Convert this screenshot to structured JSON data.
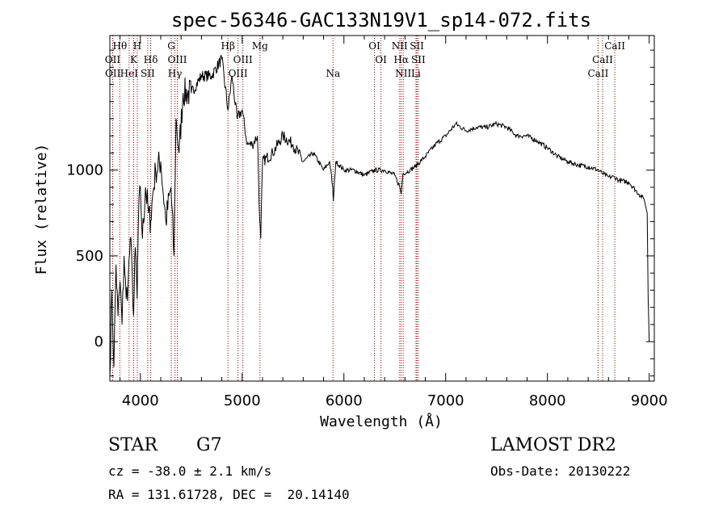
{
  "chart_data": {
    "type": "line",
    "title": "spec-56346-GAC133N19V1_sp14-072.fits",
    "xlabel": "Wavelength (Å)",
    "ylabel": "Flux (relative)",
    "xlim": [
      3700,
      9050
    ],
    "ylim": [
      -230,
      1785
    ],
    "xticks": [
      4000,
      5000,
      6000,
      7000,
      8000,
      9000
    ],
    "yticks": [
      0,
      500,
      1000
    ],
    "grid": false,
    "series": [
      {
        "values_x": [
          3700,
          3720,
          3740,
          3760,
          3780,
          3800,
          3820,
          3840,
          3860,
          3880,
          3900,
          3920,
          3933,
          3950,
          3968,
          3980,
          4000,
          4020,
          4050,
          4080,
          4101,
          4120,
          4150,
          4200,
          4250,
          4300,
          4330,
          4350,
          4380,
          4420,
          4500,
          4600,
          4700,
          4800,
          4861,
          4900,
          4950,
          5000,
          5050,
          5100,
          5150,
          5173,
          5183,
          5200,
          5300,
          5400,
          5500,
          5600,
          5700,
          5800,
          5860,
          5890,
          5896,
          5920,
          6000,
          6100,
          6200,
          6300,
          6400,
          6500,
          6550,
          6563,
          6580,
          6650,
          6700,
          6800,
          6900,
          7000,
          7100,
          7200,
          7300,
          7400,
          7500,
          7600,
          7700,
          7800,
          7900,
          8000,
          8100,
          8200,
          8300,
          8400,
          8500,
          8542,
          8600,
          8662,
          8700,
          8800,
          8900,
          8950,
          8980,
          8990,
          9000
        ],
        "values_y": [
          -200,
          300,
          -150,
          450,
          150,
          350,
          100,
          500,
          250,
          350,
          600,
          400,
          150,
          550,
          250,
          700,
          900,
          600,
          900,
          750,
          700,
          850,
          1000,
          1050,
          700,
          900,
          500,
          1300,
          1100,
          1450,
          1450,
          1550,
          1550,
          1650,
          1350,
          1550,
          1300,
          1350,
          1150,
          1150,
          1200,
          700,
          600,
          1050,
          1100,
          1200,
          1150,
          1050,
          1100,
          1000,
          1050,
          900,
          820,
          1050,
          1000,
          1000,
          970,
          1000,
          1000,
          970,
          900,
          860,
          980,
          1000,
          1020,
          1080,
          1150,
          1200,
          1270,
          1230,
          1250,
          1250,
          1270,
          1250,
          1200,
          1200,
          1170,
          1130,
          1080,
          1050,
          1030,
          1020,
          1000,
          980,
          960,
          960,
          940,
          930,
          860,
          830,
          750,
          250,
          0
        ]
      }
    ],
    "line_ids": [
      {
        "label": "Hθ",
        "x": 3798,
        "row": 0
      },
      {
        "label": "H",
        "x": 3970,
        "row": 0
      },
      {
        "label": "G",
        "x": 4304,
        "row": 0
      },
      {
        "label": "Hβ",
        "x": 4861,
        "row": 0
      },
      {
        "label": "Mg",
        "x": 5175,
        "row": 0
      },
      {
        "label": "OI",
        "x": 6300,
        "row": 0
      },
      {
        "label": "NII",
        "x": 6548,
        "row": 0
      },
      {
        "label": "SII",
        "x": 6717,
        "row": 0
      },
      {
        "label": "CaII",
        "x": 8662,
        "row": 0
      },
      {
        "label": "OII",
        "x": 3727,
        "row": 1
      },
      {
        "label": "K",
        "x": 3934,
        "row": 1
      },
      {
        "label": "Hδ",
        "x": 4102,
        "row": 1
      },
      {
        "label": "OIII",
        "x": 4363,
        "row": 1
      },
      {
        "label": "OIII",
        "x": 5007,
        "row": 1
      },
      {
        "label": "OI",
        "x": 6364,
        "row": 1
      },
      {
        "label": "Hα",
        "x": 6563,
        "row": 1
      },
      {
        "label": "SII",
        "x": 6731,
        "row": 1
      },
      {
        "label": "CaII",
        "x": 8542,
        "row": 1
      },
      {
        "label": "OII",
        "x": 3729,
        "row": 2
      },
      {
        "label": "HeI",
        "x": 3889,
        "row": 2
      },
      {
        "label": "SII",
        "x": 4072,
        "row": 2
      },
      {
        "label": "Hγ",
        "x": 4340,
        "row": 2
      },
      {
        "label": "OIII",
        "x": 4959,
        "row": 2
      },
      {
        "label": "Na",
        "x": 5893,
        "row": 2
      },
      {
        "label": "NII",
        "x": 6583,
        "row": 2
      },
      {
        "label": "Li",
        "x": 6708,
        "row": 2
      },
      {
        "label": "CaII",
        "x": 8498,
        "row": 2
      }
    ]
  },
  "footer": {
    "class_label": "STAR",
    "subclass": "G7",
    "survey": "LAMOST DR2",
    "cz": "cz = -38.0 ± 2.1 km/s",
    "obs_date": "Obs-Date: 20130222",
    "coords": "RA = 131.61728, DEC =  20.14140"
  },
  "colors": {
    "spectrum": "#000000",
    "line_markers": "#8b0000",
    "axes": "#000000",
    "background": "#ffffff"
  }
}
